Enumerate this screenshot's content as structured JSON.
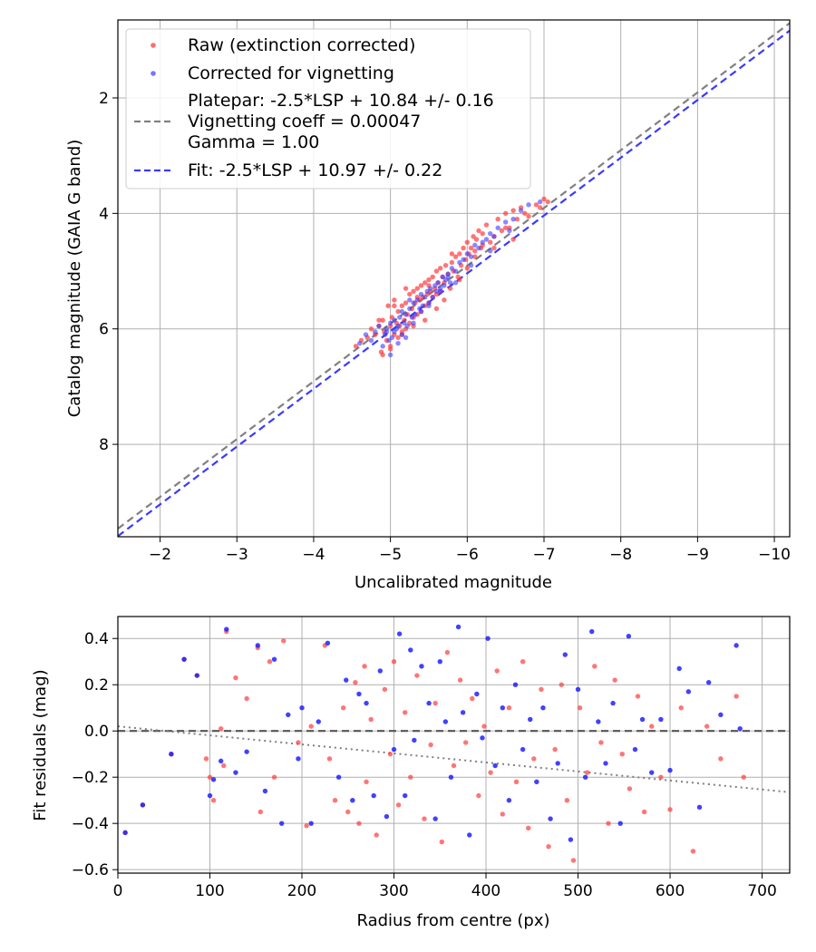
{
  "chart_data": [
    {
      "type": "scatter",
      "xlabel": "Uncalibrated magnitude",
      "ylabel": "Catalog magnitude (GAIA G band)",
      "xlim": [
        -1.45,
        -10.2
      ],
      "ylim": [
        9.6,
        0.65
      ],
      "x_inverted": true,
      "y_inverted": true,
      "grid": true,
      "xticks": [
        -2,
        -3,
        -4,
        -5,
        -6,
        -7,
        -8,
        -9,
        -10
      ],
      "xtick_labels": [
        "−2",
        "−3",
        "−4",
        "−5",
        "−6",
        "−7",
        "−8",
        "−9",
        "−10"
      ],
      "yticks": [
        2,
        4,
        6,
        8
      ],
      "ytick_labels": [
        "2",
        "4",
        "6",
        "8"
      ],
      "legend_position": "top-left",
      "legend": [
        {
          "label": "Raw (extinction corrected)",
          "marker": "dot",
          "color": "#ff3b3b"
        },
        {
          "label": "Corrected for vignetting",
          "marker": "dot",
          "color": "#3a3aff"
        },
        {
          "label": "Platepar: -2.5*LSP + 10.84 +/- 0.16",
          "marker": "none",
          "color": "#808080"
        },
        {
          "label": "Vignetting coeff = 0.00047",
          "marker": "dashed-line",
          "color": "#808080"
        },
        {
          "label": "Gamma = 1.00",
          "marker": "none",
          "color": "#808080"
        },
        {
          "label": "Fit: -2.5*LSP + 10.97 +/- 0.22",
          "marker": "dashed-line",
          "color": "#3a3aff"
        }
      ],
      "lines": [
        {
          "name": "Platepar",
          "x": [
            -1.45,
            -10.2
          ],
          "y": [
            9.46,
            0.705
          ],
          "style": "dashed",
          "color": "#808080"
        },
        {
          "name": "Fit",
          "x": [
            -1.45,
            -10.2
          ],
          "y": [
            9.59,
            0.835
          ],
          "style": "dashed",
          "color": "#3a3aff"
        }
      ],
      "series": [
        {
          "name": "Raw (extinction corrected)",
          "color": "#ff3b3b",
          "opacity": 0.7,
          "x": [
            -4.55,
            -4.62,
            -4.7,
            -4.75,
            -4.8,
            -4.85,
            -4.88,
            -4.9,
            -4.92,
            -4.95,
            -4.97,
            -5.0,
            -5.0,
            -5.02,
            -5.05,
            -5.05,
            -5.08,
            -5.1,
            -5.1,
            -5.12,
            -5.15,
            -5.15,
            -5.18,
            -5.2,
            -5.2,
            -5.22,
            -5.25,
            -5.25,
            -5.28,
            -5.3,
            -5.3,
            -5.32,
            -5.35,
            -5.35,
            -5.38,
            -5.4,
            -5.4,
            -5.42,
            -5.45,
            -5.45,
            -5.48,
            -5.5,
            -5.5,
            -5.52,
            -5.55,
            -5.55,
            -5.58,
            -5.6,
            -5.6,
            -5.62,
            -5.65,
            -5.65,
            -5.68,
            -5.7,
            -5.72,
            -5.75,
            -5.78,
            -5.8,
            -5.82,
            -5.85,
            -5.88,
            -5.9,
            -5.92,
            -5.95,
            -5.98,
            -6.0,
            -6.02,
            -6.05,
            -6.08,
            -6.1,
            -6.12,
            -6.15,
            -6.18,
            -6.2,
            -6.25,
            -6.3,
            -6.35,
            -6.4,
            -6.45,
            -6.5,
            -6.55,
            -6.6,
            -6.65,
            -6.7,
            -6.75,
            -6.8,
            -6.9,
            -6.95,
            -7.0,
            -7.05,
            -4.85,
            -4.9,
            -5.0,
            -5.05,
            -5.15,
            -5.2,
            -5.3,
            -5.35,
            -5.45,
            -5.5,
            -5.6,
            -5.7,
            -5.8,
            -5.9,
            -6.0,
            -6.1,
            -6.2,
            -6.35,
            -6.5,
            -6.6
          ],
          "y": [
            6.3,
            6.2,
            6.15,
            6.0,
            6.1,
            5.95,
            6.4,
            5.85,
            6.05,
            6.2,
            5.6,
            5.95,
            6.3,
            5.8,
            6.1,
            5.5,
            5.9,
            6.15,
            5.7,
            5.95,
            5.6,
            6.05,
            5.85,
            5.55,
            6.0,
            5.75,
            5.4,
            5.9,
            5.65,
            5.35,
            5.8,
            5.55,
            5.3,
            5.75,
            5.5,
            5.25,
            5.7,
            5.45,
            5.2,
            5.6,
            5.4,
            5.15,
            5.55,
            5.35,
            5.1,
            5.45,
            5.3,
            5.0,
            5.4,
            5.2,
            4.95,
            5.35,
            5.1,
            5.2,
            4.9,
            5.05,
            5.3,
            4.85,
            5.0,
            4.75,
            5.1,
            4.7,
            4.9,
            4.6,
            4.8,
            4.5,
            4.7,
            4.6,
            4.4,
            4.75,
            4.45,
            4.3,
            4.6,
            4.35,
            4.2,
            4.5,
            4.4,
            4.1,
            4.3,
            4.0,
            4.25,
            3.95,
            4.1,
            3.9,
            4.0,
            4.05,
            3.85,
            3.9,
            3.75,
            3.8,
            5.85,
            6.45,
            6.35,
            5.6,
            6.1,
            5.3,
            5.95,
            5.45,
            5.85,
            5.25,
            5.65,
            5.5,
            4.7,
            5.15,
            4.95,
            4.65,
            4.55,
            4.6,
            4.25,
            4.45
          ]
        },
        {
          "name": "Corrected for vignetting",
          "color": "#3a3aff",
          "opacity": 0.6,
          "x": [
            -4.6,
            -4.68,
            -4.75,
            -4.8,
            -4.85,
            -4.9,
            -4.93,
            -4.95,
            -4.98,
            -5.0,
            -5.02,
            -5.05,
            -5.05,
            -5.08,
            -5.1,
            -5.12,
            -5.15,
            -5.15,
            -5.18,
            -5.2,
            -5.22,
            -5.25,
            -5.28,
            -5.3,
            -5.32,
            -5.35,
            -5.38,
            -5.4,
            -5.42,
            -5.45,
            -5.48,
            -5.5,
            -5.52,
            -5.55,
            -5.58,
            -5.6,
            -5.62,
            -5.65,
            -5.68,
            -5.7,
            -5.72,
            -5.75,
            -5.78,
            -5.8,
            -5.85,
            -5.9,
            -5.95,
            -6.0,
            -6.05,
            -6.1,
            -6.15,
            -6.2,
            -6.25,
            -6.3,
            -6.35,
            -6.4,
            -6.5,
            -6.6,
            -6.7,
            -6.8,
            -6.95,
            -5.0,
            -5.1,
            -5.2,
            -5.3,
            -5.4,
            -5.5,
            -5.65,
            -5.85,
            -6.05,
            -6.3,
            -6.55,
            -4.95,
            -5.25,
            -5.75
          ],
          "y": [
            6.25,
            6.1,
            6.2,
            6.05,
            5.95,
            6.3,
            6.1,
            6.0,
            6.2,
            5.9,
            6.15,
            6.05,
            5.85,
            6.0,
            5.95,
            5.8,
            6.1,
            5.7,
            5.9,
            5.75,
            5.95,
            5.65,
            5.8,
            5.55,
            5.75,
            5.5,
            5.65,
            5.4,
            5.6,
            5.45,
            5.35,
            5.55,
            5.3,
            5.45,
            5.25,
            5.35,
            5.2,
            5.3,
            5.1,
            5.25,
            5.15,
            5.05,
            5.2,
            4.95,
            5.0,
            4.85,
            4.8,
            4.7,
            4.75,
            4.55,
            4.6,
            4.5,
            4.45,
            4.35,
            4.4,
            4.25,
            4.15,
            4.1,
            3.95,
            3.85,
            3.8,
            6.45,
            6.25,
            6.15,
            5.9,
            5.7,
            5.6,
            5.35,
            5.2,
            4.9,
            4.65,
            4.3,
            6.05,
            5.5,
            5.1
          ]
        }
      ]
    },
    {
      "type": "scatter",
      "xlabel": "Radius from centre (px)",
      "ylabel": "Fit residuals (mag)",
      "xlim": [
        0,
        730
      ],
      "ylim": [
        -0.615,
        0.495
      ],
      "grid": true,
      "xticks": [
        0,
        100,
        200,
        300,
        400,
        500,
        600,
        700
      ],
      "xtick_labels": [
        "0",
        "100",
        "200",
        "300",
        "400",
        "500",
        "600",
        "700"
      ],
      "yticks": [
        -0.6,
        -0.4,
        -0.2,
        0.0,
        0.2,
        0.4
      ],
      "ytick_labels": [
        "−0.6",
        "−0.4",
        "−0.2",
        "0.0",
        "0.2",
        "0.4"
      ],
      "lines": [
        {
          "name": "zero",
          "x": [
            0,
            730
          ],
          "y": [
            0,
            0
          ],
          "style": "dashed",
          "color": "#555555"
        },
        {
          "name": "trend",
          "x": [
            0,
            730
          ],
          "y": [
            0.02,
            -0.265
          ],
          "style": "dotted",
          "color": "#808080"
        }
      ],
      "series": [
        {
          "name": "Raw (extinction corrected)",
          "color": "#ff3b3b",
          "opacity": 0.7,
          "x": [
            8,
            27,
            58,
            72,
            86,
            96,
            100,
            104,
            112,
            115,
            118,
            128,
            140,
            152,
            155,
            165,
            170,
            180,
            196,
            205,
            210,
            225,
            230,
            236,
            245,
            250,
            258,
            262,
            268,
            270,
            275,
            281,
            290,
            296,
            300,
            305,
            312,
            318,
            325,
            333,
            340,
            345,
            352,
            358,
            365,
            372,
            378,
            385,
            392,
            398,
            405,
            412,
            418,
            425,
            433,
            440,
            446,
            452,
            460,
            468,
            475,
            482,
            488,
            495,
            502,
            510,
            518,
            525,
            533,
            540,
            548,
            556,
            565,
            572,
            580,
            590,
            600,
            612,
            625,
            640,
            655,
            672,
            680
          ],
          "y": [
            -0.44,
            -0.32,
            -0.1,
            0.31,
            0.24,
            -0.12,
            -0.2,
            -0.3,
            0.01,
            -0.15,
            0.43,
            0.23,
            0.14,
            0.36,
            -0.35,
            0.3,
            -0.2,
            0.39,
            -0.05,
            -0.41,
            0.02,
            0.37,
            -0.12,
            -0.3,
            0.1,
            -0.35,
            0.21,
            -0.4,
            0.28,
            -0.22,
            0.05,
            -0.45,
            0.18,
            -0.1,
            0.3,
            -0.32,
            0.08,
            -0.2,
            0.24,
            -0.38,
            -0.06,
            0.12,
            -0.48,
            0.34,
            -0.15,
            0.22,
            -0.05,
            0.14,
            -0.28,
            0.02,
            -0.18,
            0.26,
            -0.36,
            0.1,
            -0.22,
            0.3,
            -0.42,
            -0.12,
            0.18,
            -0.5,
            -0.08,
            0.2,
            -0.3,
            -0.56,
            0.1,
            -0.18,
            0.28,
            -0.05,
            -0.4,
            0.22,
            -0.1,
            -0.25,
            0.15,
            -0.35,
            0.02,
            -0.2,
            -0.34,
            0.1,
            -0.52,
            0.02,
            -0.12,
            0.15,
            -0.2
          ]
        },
        {
          "name": "Corrected for vignetting",
          "color": "#2020ff",
          "opacity": 0.85,
          "x": [
            8,
            27,
            58,
            72,
            86,
            100,
            104,
            112,
            118,
            128,
            140,
            152,
            160,
            170,
            178,
            185,
            196,
            200,
            210,
            218,
            228,
            240,
            248,
            255,
            262,
            270,
            278,
            285,
            292,
            300,
            306,
            312,
            318,
            322,
            330,
            338,
            345,
            350,
            356,
            362,
            370,
            375,
            382,
            390,
            396,
            402,
            410,
            418,
            425,
            432,
            440,
            448,
            455,
            462,
            470,
            478,
            486,
            492,
            500,
            508,
            515,
            522,
            530,
            538,
            546,
            555,
            562,
            570,
            580,
            590,
            600,
            610,
            620,
            632,
            642,
            655,
            672,
            676
          ],
          "y": [
            -0.44,
            -0.32,
            -0.1,
            0.31,
            0.24,
            -0.28,
            -0.21,
            -0.13,
            0.44,
            -0.18,
            -0.09,
            0.37,
            -0.26,
            0.31,
            -0.4,
            0.07,
            -0.12,
            0.1,
            -0.4,
            0.04,
            0.38,
            -0.2,
            0.22,
            -0.3,
            0.16,
            0.12,
            -0.28,
            0.26,
            -0.37,
            -0.08,
            0.42,
            -0.28,
            0.35,
            -0.04,
            0.28,
            0.12,
            -0.38,
            0.3,
            0.04,
            -0.2,
            0.45,
            0.08,
            -0.45,
            0.16,
            -0.03,
            0.4,
            -0.15,
            0.1,
            -0.3,
            0.2,
            -0.08,
            0.05,
            -0.22,
            0.1,
            -0.38,
            -0.14,
            0.33,
            -0.47,
            0.18,
            -0.2,
            0.43,
            0.04,
            -0.14,
            0.12,
            -0.4,
            0.41,
            -0.08,
            0.05,
            -0.18,
            0.05,
            -0.17,
            0.27,
            0.17,
            -0.33,
            0.21,
            0.07,
            0.37,
            0.01
          ]
        }
      ]
    }
  ]
}
